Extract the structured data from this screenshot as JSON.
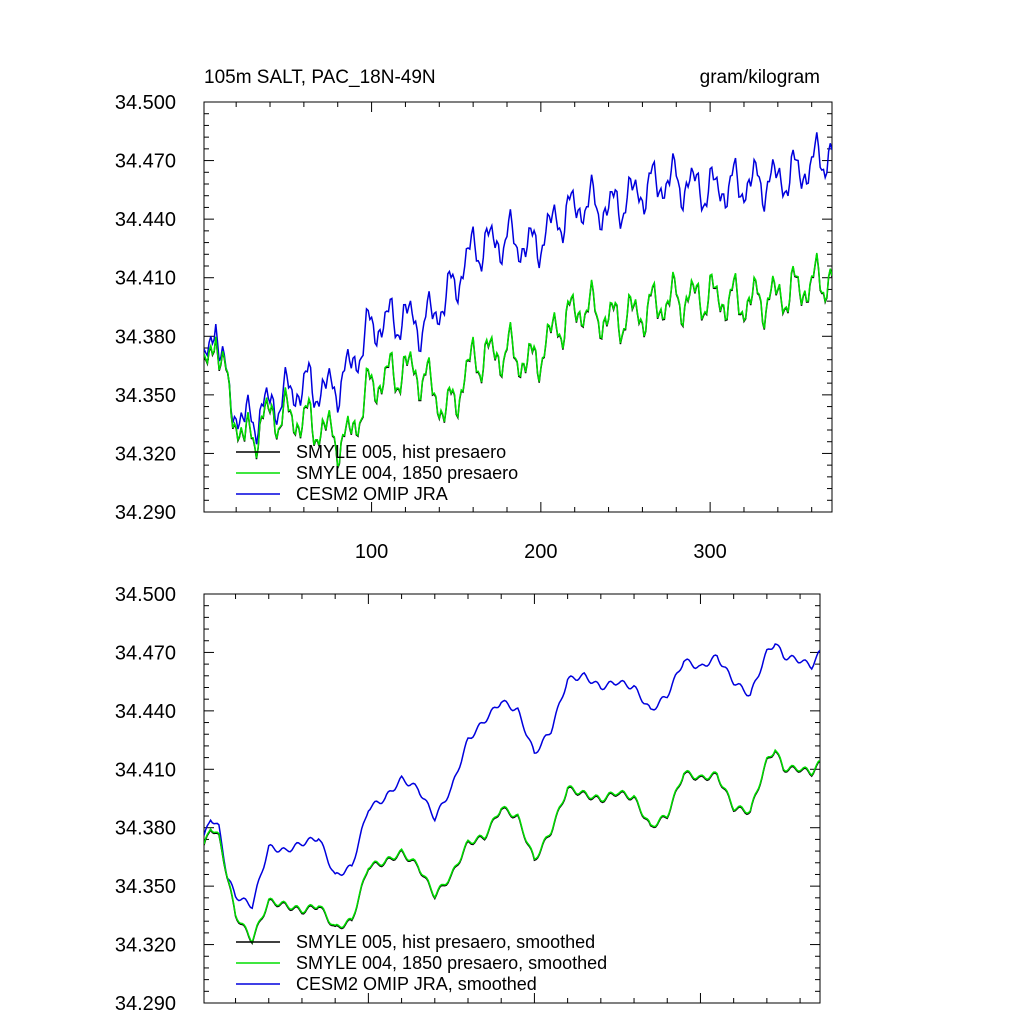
{
  "chart_data": [
    {
      "type": "line",
      "title": "105m SALT, PAC_18N-49N",
      "units_label": "gram/kilogram",
      "xlabel": "",
      "ylabel": "",
      "xlim": [
        1,
        372
      ],
      "ylim": [
        34.29,
        34.5
      ],
      "x_ticks": [
        100,
        200,
        300
      ],
      "x_tick_labels": [
        "100",
        "200",
        "300"
      ],
      "y_ticks": [
        34.29,
        34.32,
        34.35,
        34.38,
        34.41,
        34.44,
        34.47,
        34.5
      ],
      "y_tick_labels": [
        "34.290",
        "34.320",
        "34.350",
        "34.380",
        "34.410",
        "34.440",
        "34.470",
        "34.500"
      ],
      "legend_position": "lower-left",
      "series": [
        {
          "name": "SMYLE 005, hist presaero",
          "color": "#000000",
          "offset": 0.0,
          "noise": 1.0,
          "smoothed": false
        },
        {
          "name": "SMYLE 004, 1850 presaero",
          "color": "#00dd00",
          "offset": 0.0005,
          "noise": 1.0,
          "smoothed": false
        },
        {
          "name": "CESM2 OMIP JRA",
          "color": "#0000dd",
          "offset": 0.0,
          "noise": 1.0,
          "smoothed": false
        }
      ],
      "trend_knots": {
        "model": [
          [
            1,
            34.357
          ],
          [
            8,
            34.383
          ],
          [
            15,
            34.35
          ],
          [
            25,
            34.325
          ],
          [
            40,
            34.34
          ],
          [
            60,
            34.337
          ],
          [
            75,
            34.33
          ],
          [
            85,
            34.325
          ],
          [
            100,
            34.355
          ],
          [
            120,
            34.363
          ],
          [
            130,
            34.36
          ],
          [
            145,
            34.34
          ],
          [
            160,
            34.368
          ],
          [
            180,
            34.372
          ],
          [
            195,
            34.365
          ],
          [
            210,
            34.385
          ],
          [
            225,
            34.395
          ],
          [
            240,
            34.388
          ],
          [
            260,
            34.392
          ],
          [
            275,
            34.398
          ],
          [
            300,
            34.4
          ],
          [
            320,
            34.397
          ],
          [
            340,
            34.4
          ],
          [
            355,
            34.405
          ],
          [
            372,
            34.41
          ]
        ],
        "omip": [
          [
            1,
            34.36
          ],
          [
            8,
            34.39
          ],
          [
            15,
            34.35
          ],
          [
            25,
            34.335
          ],
          [
            40,
            34.345
          ],
          [
            60,
            34.355
          ],
          [
            75,
            34.352
          ],
          [
            85,
            34.36
          ],
          [
            100,
            34.385
          ],
          [
            120,
            34.39
          ],
          [
            130,
            34.385
          ],
          [
            145,
            34.4
          ],
          [
            160,
            34.425
          ],
          [
            180,
            34.43
          ],
          [
            195,
            34.425
          ],
          [
            210,
            34.44
          ],
          [
            225,
            34.448
          ],
          [
            240,
            34.445
          ],
          [
            260,
            34.455
          ],
          [
            275,
            34.46
          ],
          [
            300,
            34.455
          ],
          [
            320,
            34.458
          ],
          [
            340,
            34.46
          ],
          [
            355,
            34.465
          ],
          [
            372,
            34.475
          ]
        ]
      }
    },
    {
      "type": "line",
      "title": "",
      "xlabel": "",
      "ylabel": "",
      "xlim": [
        1,
        372
      ],
      "ylim": [
        34.29,
        34.5
      ],
      "x_ticks": [
        100,
        200,
        300
      ],
      "x_tick_labels": [],
      "y_ticks": [
        34.29,
        34.32,
        34.35,
        34.38,
        34.41,
        34.44,
        34.47,
        34.5
      ],
      "y_tick_labels": [
        "34.290",
        "34.320",
        "34.350",
        "34.380",
        "34.410",
        "34.440",
        "34.470",
        "34.500"
      ],
      "legend_position": "lower-left",
      "series": [
        {
          "name": "SMYLE 005, hist presaero, smoothed",
          "color": "#000000",
          "offset": 0.0,
          "noise": 0.0,
          "smoothed": true
        },
        {
          "name": "SMYLE 004, 1850 presaero, smoothed",
          "color": "#00dd00",
          "offset": 0.0005,
          "noise": 0.0,
          "smoothed": true
        },
        {
          "name": "CESM2 OMIP JRA, smoothed",
          "color": "#0000dd",
          "offset": 0.0,
          "noise": 0.0,
          "smoothed": true
        }
      ],
      "trend_knots": {
        "model": [
          [
            1,
            34.37
          ],
          [
            5,
            34.38
          ],
          [
            10,
            34.375
          ],
          [
            15,
            34.355
          ],
          [
            20,
            34.335
          ],
          [
            30,
            34.322
          ],
          [
            40,
            34.342
          ],
          [
            50,
            34.34
          ],
          [
            60,
            34.337
          ],
          [
            70,
            34.34
          ],
          [
            80,
            34.328
          ],
          [
            90,
            34.332
          ],
          [
            100,
            34.36
          ],
          [
            110,
            34.362
          ],
          [
            120,
            34.367
          ],
          [
            130,
            34.36
          ],
          [
            140,
            34.345
          ],
          [
            150,
            34.355
          ],
          [
            160,
            34.372
          ],
          [
            170,
            34.375
          ],
          [
            180,
            34.39
          ],
          [
            190,
            34.385
          ],
          [
            200,
            34.363
          ],
          [
            210,
            34.378
          ],
          [
            220,
            34.4
          ],
          [
            230,
            34.397
          ],
          [
            240,
            34.394
          ],
          [
            250,
            34.398
          ],
          [
            260,
            34.395
          ],
          [
            270,
            34.38
          ],
          [
            280,
            34.386
          ],
          [
            290,
            34.408
          ],
          [
            300,
            34.405
          ],
          [
            310,
            34.407
          ],
          [
            320,
            34.39
          ],
          [
            330,
            34.388
          ],
          [
            340,
            34.414
          ],
          [
            345,
            34.42
          ],
          [
            350,
            34.41
          ],
          [
            360,
            34.41
          ],
          [
            367,
            34.408
          ],
          [
            372,
            34.413
          ]
        ],
        "omip": [
          [
            1,
            34.375
          ],
          [
            5,
            34.385
          ],
          [
            10,
            34.38
          ],
          [
            15,
            34.355
          ],
          [
            20,
            34.345
          ],
          [
            30,
            34.34
          ],
          [
            40,
            34.37
          ],
          [
            50,
            34.368
          ],
          [
            60,
            34.372
          ],
          [
            70,
            34.375
          ],
          [
            80,
            34.355
          ],
          [
            90,
            34.36
          ],
          [
            100,
            34.39
          ],
          [
            110,
            34.395
          ],
          [
            120,
            34.405
          ],
          [
            130,
            34.4
          ],
          [
            140,
            34.385
          ],
          [
            150,
            34.4
          ],
          [
            160,
            34.425
          ],
          [
            170,
            34.435
          ],
          [
            180,
            34.445
          ],
          [
            190,
            34.44
          ],
          [
            200,
            34.418
          ],
          [
            210,
            34.43
          ],
          [
            220,
            34.456
          ],
          [
            230,
            34.458
          ],
          [
            240,
            34.452
          ],
          [
            250,
            34.455
          ],
          [
            260,
            34.452
          ],
          [
            270,
            34.44
          ],
          [
            280,
            34.448
          ],
          [
            290,
            34.466
          ],
          [
            300,
            34.462
          ],
          [
            310,
            34.468
          ],
          [
            320,
            34.455
          ],
          [
            330,
            34.448
          ],
          [
            340,
            34.47
          ],
          [
            345,
            34.475
          ],
          [
            350,
            34.468
          ],
          [
            360,
            34.466
          ],
          [
            367,
            34.463
          ],
          [
            372,
            34.47
          ]
        ]
      }
    }
  ]
}
